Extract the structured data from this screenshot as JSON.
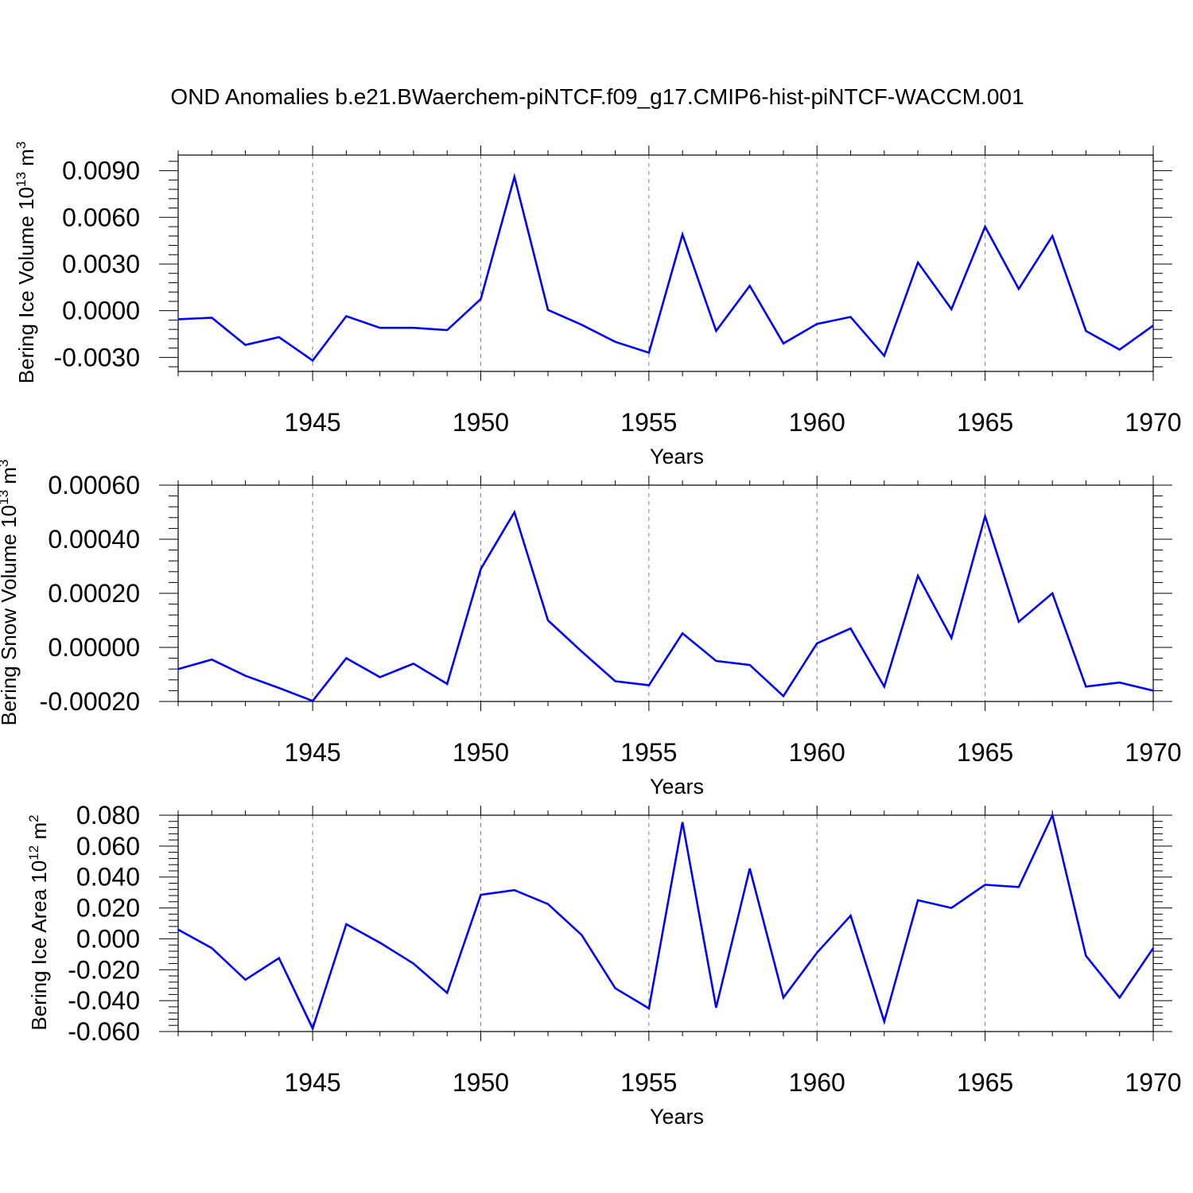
{
  "title": "OND Anomalies b.e21.BWaerchem-piNTCF.f09_g17.CMIP6-hist-piNTCF-WACCM.001",
  "colors": {
    "line": "#0000ff",
    "axis": "#000000",
    "grid": "#7f7f7f"
  },
  "chart_data": [
    {
      "type": "line",
      "ylabel": {
        "main": "Bering Ice Volume 10",
        "sup": "13",
        "unit": "m",
        "unit_sup": "3"
      },
      "xlabel": "Years",
      "xlim": [
        1941,
        1970
      ],
      "ylim": [
        -0.0039,
        0.01
      ],
      "yticks": [
        -0.003,
        0.0,
        0.003,
        0.006,
        0.009
      ],
      "ytick_labels": [
        "-0.0030",
        "0.0000",
        "0.0030",
        "0.0060",
        "0.0090"
      ],
      "xticks": [
        1945,
        1950,
        1955,
        1960,
        1965,
        1970
      ],
      "xtick_labels": [
        "1945",
        "1950",
        "1955",
        "1960",
        "1965",
        "1970"
      ],
      "x": [
        1941,
        1942,
        1943,
        1944,
        1945,
        1946,
        1947,
        1948,
        1949,
        1950,
        1951,
        1952,
        1953,
        1954,
        1955,
        1956,
        1957,
        1958,
        1959,
        1960,
        1961,
        1962,
        1963,
        1964,
        1965,
        1966,
        1967,
        1968,
        1969,
        1970
      ],
      "values": [
        -0.00055,
        -0.00045,
        -0.0022,
        -0.0017,
        -0.0032,
        -0.00035,
        -0.0011,
        -0.0011,
        -0.00125,
        0.00075,
        0.0086,
        5e-05,
        -0.0009,
        -0.002,
        -0.0027,
        0.0049,
        -0.0013,
        0.0016,
        -0.0021,
        -0.00085,
        -0.0004,
        -0.0029,
        0.0031,
        0.0001,
        0.0054,
        0.0014,
        0.0048,
        -0.0013,
        -0.0025,
        -0.00095
      ]
    },
    {
      "type": "line",
      "ylabel": {
        "main": "Bering Snow Volume 10",
        "sup": "13",
        "unit": "m",
        "unit_sup": "3"
      },
      "xlabel": "Years",
      "xlim": [
        1941,
        1970
      ],
      "ylim": [
        -0.0002,
        0.0006
      ],
      "yticks": [
        -0.0002,
        0.0,
        0.0002,
        0.0004,
        0.0006
      ],
      "ytick_labels": [
        "-0.00020",
        "0.00000",
        "0.00020",
        "0.00040",
        "0.00060"
      ],
      "xticks": [
        1945,
        1950,
        1955,
        1960,
        1965,
        1970
      ],
      "xtick_labels": [
        "1945",
        "1950",
        "1955",
        "1960",
        "1965",
        "1970"
      ],
      "x": [
        1941,
        1942,
        1943,
        1944,
        1945,
        1946,
        1947,
        1948,
        1949,
        1950,
        1951,
        1952,
        1953,
        1954,
        1955,
        1956,
        1957,
        1958,
        1959,
        1960,
        1961,
        1962,
        1963,
        1964,
        1965,
        1966,
        1967,
        1968,
        1969,
        1970
      ],
      "values": [
        -8e-05,
        -4.5e-05,
        -0.000105,
        -0.00015,
        -0.000198,
        -4e-05,
        -0.00011,
        -6e-05,
        -0.000135,
        0.00029,
        0.0005,
        0.0001,
        -1.5e-05,
        -0.000125,
        -0.00014,
        5.2e-05,
        -5e-05,
        -6.5e-05,
        -0.00018,
        1.5e-05,
        7e-05,
        -0.000145,
        0.000265,
        3.5e-05,
        0.000485,
        9.5e-05,
        0.0002,
        -0.000145,
        -0.00013,
        -0.00016
      ]
    },
    {
      "type": "line",
      "ylabel": {
        "main": "Bering Ice Area 10",
        "sup": "12",
        "unit": "m",
        "unit_sup": "2"
      },
      "xlabel": "Years",
      "xlim": [
        1941,
        1970
      ],
      "ylim": [
        -0.06,
        0.08
      ],
      "yticks": [
        -0.06,
        -0.04,
        -0.02,
        0.0,
        0.02,
        0.04,
        0.06,
        0.08
      ],
      "ytick_labels": [
        "-0.060",
        "-0.040",
        "-0.020",
        "0.000",
        "0.020",
        "0.040",
        "0.060",
        "0.080"
      ],
      "xticks": [
        1945,
        1950,
        1955,
        1960,
        1965,
        1970
      ],
      "xtick_labels": [
        "1945",
        "1950",
        "1955",
        "1960",
        "1965",
        "1970"
      ],
      "x": [
        1941,
        1942,
        1943,
        1944,
        1945,
        1946,
        1947,
        1948,
        1949,
        1950,
        1951,
        1952,
        1953,
        1954,
        1955,
        1956,
        1957,
        1958,
        1959,
        1960,
        1961,
        1962,
        1963,
        1964,
        1965,
        1966,
        1967,
        1968,
        1969,
        1970
      ],
      "values": [
        0.006,
        -0.006,
        -0.0265,
        -0.0125,
        -0.058,
        0.0095,
        -0.0025,
        -0.016,
        -0.035,
        0.0285,
        0.0315,
        0.0225,
        0.0025,
        -0.032,
        -0.045,
        0.0755,
        -0.0445,
        0.0455,
        -0.038,
        -0.009,
        0.015,
        -0.0535,
        0.025,
        0.02,
        0.035,
        0.0335,
        0.08,
        -0.011,
        -0.038,
        -0.006
      ]
    }
  ]
}
